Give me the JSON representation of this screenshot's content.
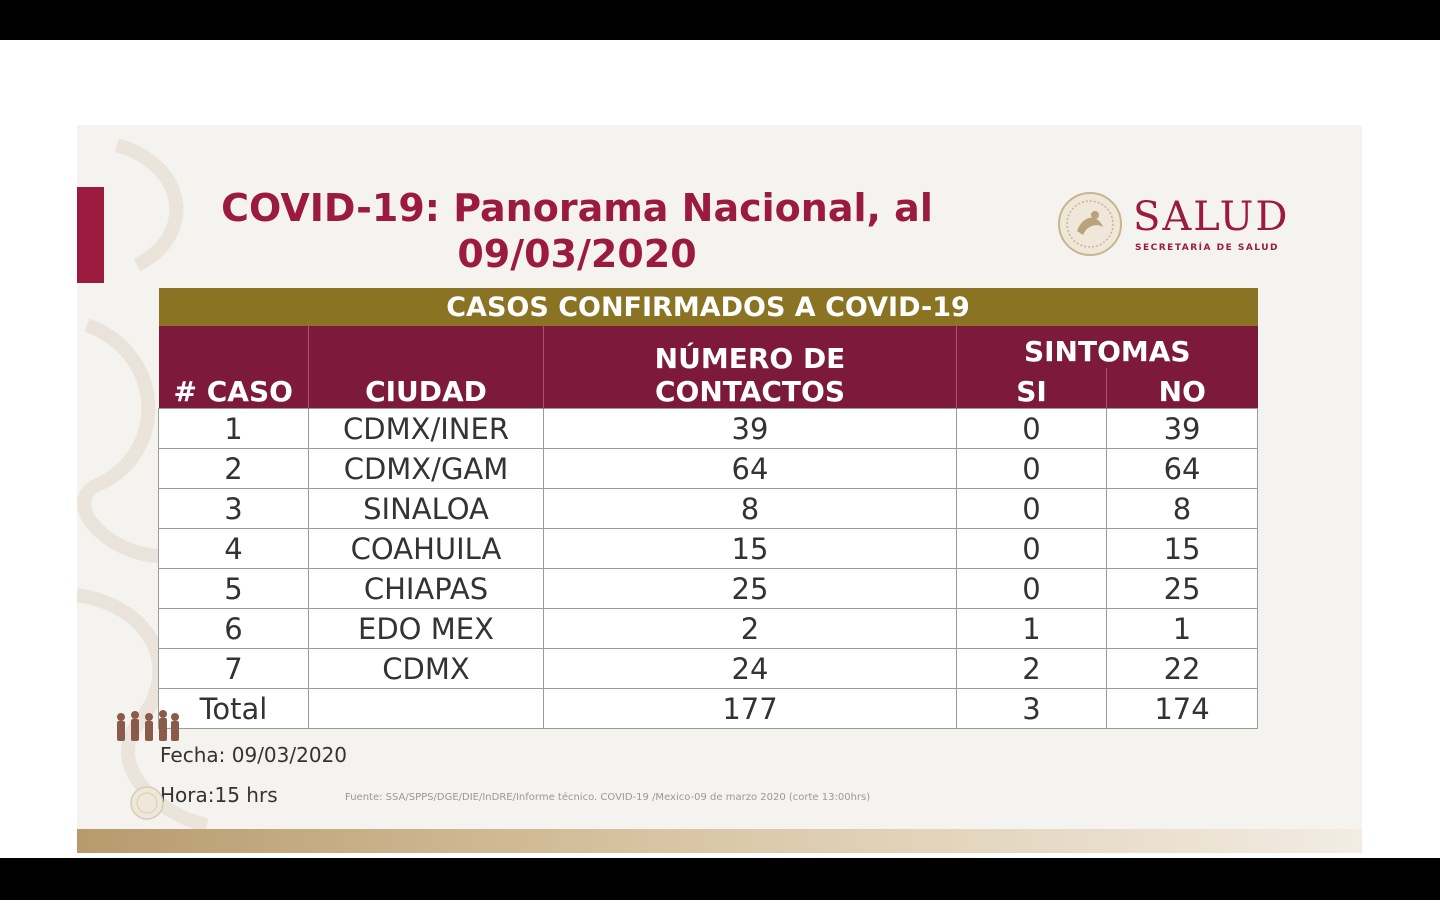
{
  "slide": {
    "title_line1": "COVID-19: Panorama Nacional, al",
    "title_line2": "09/03/2020",
    "logo_name": "SALUD",
    "logo_sub": "SECRETARÍA DE SALUD"
  },
  "table": {
    "band": "CASOS CONFIRMADOS A COVID-19",
    "headers": {
      "caso": "# CASO",
      "ciudad": "CIUDAD",
      "contactos_l1": "NÚMERO DE",
      "contactos_l2": "CONTACTOS",
      "sintomas": "SINTOMAS",
      "si": "SI",
      "no": "NO"
    },
    "rows": [
      {
        "caso": "1",
        "ciudad": "CDMX/INER",
        "contactos": "39",
        "si": "0",
        "no": "39"
      },
      {
        "caso": "2",
        "ciudad": "CDMX/GAM",
        "contactos": "64",
        "si": "0",
        "no": "64"
      },
      {
        "caso": "3",
        "ciudad": "SINALOA",
        "contactos": "8",
        "si": "0",
        "no": "8"
      },
      {
        "caso": "4",
        "ciudad": "COAHUILA",
        "contactos": "15",
        "si": "0",
        "no": "15"
      },
      {
        "caso": "5",
        "ciudad": "CHIAPAS",
        "contactos": "25",
        "si": "0",
        "no": "25"
      },
      {
        "caso": "6",
        "ciudad": "EDO MEX",
        "contactos": "2",
        "si": "1",
        "no": "1"
      },
      {
        "caso": "7",
        "ciudad": "CDMX",
        "contactos": "24",
        "si": "2",
        "no": "22"
      }
    ],
    "total": {
      "label": "Total",
      "ciudad": "",
      "contactos": "177",
      "si": "3",
      "no": "174"
    }
  },
  "footer": {
    "fecha": "Fecha: 09/03/2020",
    "hora": "Hora:15 hrs",
    "fuente": "Fuente: SSA/SPPS/DGE/DIE/InDRE/Informe técnico. COVID-19 /Mexico-09 de marzo 2020 (corte 13:00hrs)"
  },
  "colors": {
    "primary": "#9b1b3e",
    "header": "#7d1a3c",
    "band": "#8a7423"
  }
}
